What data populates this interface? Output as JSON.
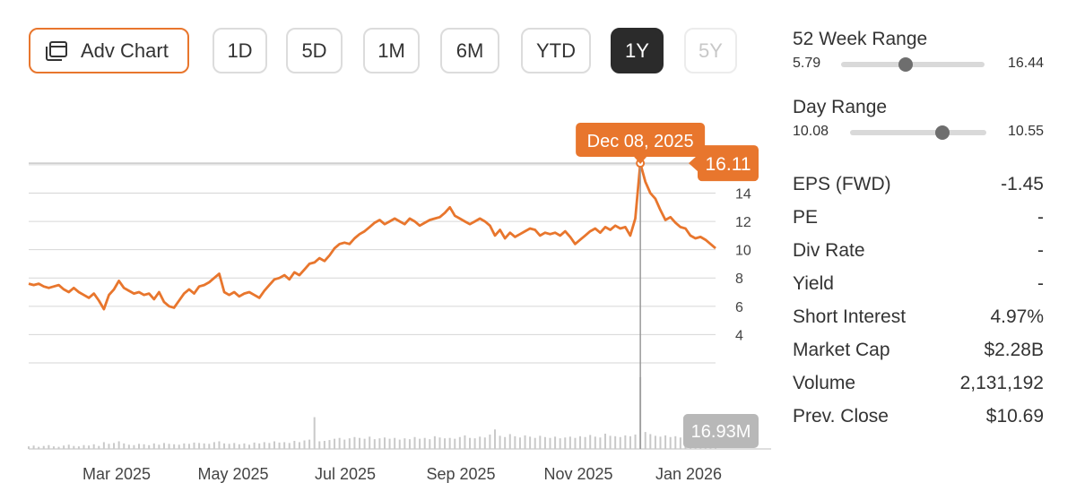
{
  "toolbar": {
    "adv_chart_label": "Adv Chart",
    "ranges": [
      {
        "label": "1D",
        "state": "normal"
      },
      {
        "label": "5D",
        "state": "normal"
      },
      {
        "label": "1M",
        "state": "normal"
      },
      {
        "label": "6M",
        "state": "normal"
      },
      {
        "label": "YTD",
        "state": "normal"
      },
      {
        "label": "1Y",
        "state": "active"
      },
      {
        "label": "5Y",
        "state": "disabled"
      }
    ]
  },
  "colors": {
    "accent": "#e8762d",
    "volume_bar": "#c9c9c9",
    "grid": "#d6d6d6",
    "active_button": "#2b2b2b"
  },
  "chart_data": {
    "type": "line",
    "y_ticks": [
      4,
      6,
      8,
      10,
      12,
      14
    ],
    "ylim": [
      2,
      16.5
    ],
    "x_ticks": [
      "Mar 2025",
      "May 2025",
      "Jul 2025",
      "Sep 2025",
      "Nov 2025",
      "Jan 2026"
    ],
    "series": [
      {
        "values": [
          7.6,
          7.5,
          7.6,
          7.4,
          7.3,
          7.4,
          7.5,
          7.2,
          7.0,
          7.3,
          7.0,
          6.8,
          6.6,
          6.9,
          6.4,
          5.8,
          6.8,
          7.2,
          7.8,
          7.3,
          7.1,
          6.9,
          7.0,
          6.8,
          6.9,
          6.5,
          7.0,
          6.3,
          6.0,
          5.9,
          6.4,
          6.9,
          7.2,
          6.9,
          7.4,
          7.5,
          7.7,
          8.0,
          8.3,
          7.0,
          6.8,
          7.0,
          6.7,
          6.9,
          7.0,
          6.8,
          6.6,
          7.1,
          7.5,
          7.9,
          8.0,
          8.2,
          7.9,
          8.4,
          8.2,
          8.6,
          9.0,
          9.1,
          9.4,
          9.2,
          9.6,
          10.1,
          10.4,
          10.5,
          10.4,
          10.8,
          11.1,
          11.3,
          11.6,
          11.9,
          12.1,
          11.8,
          12.0,
          12.2,
          12.0,
          11.8,
          12.2,
          12.0,
          11.7,
          11.9,
          12.1,
          12.2,
          12.3,
          12.6,
          13.0,
          12.4,
          12.2,
          12.0,
          11.8,
          12.0,
          12.2,
          12.0,
          11.7,
          11.0,
          11.4,
          10.8,
          11.2,
          10.9,
          11.1,
          11.3,
          11.5,
          11.4,
          11.0,
          11.2,
          11.1,
          11.2,
          11.0,
          11.3,
          10.9,
          10.4,
          10.7,
          11.0,
          11.3,
          11.5,
          11.2,
          11.6,
          11.4,
          11.7,
          11.5,
          11.6,
          11.0,
          12.2,
          16.11,
          14.8,
          14.0,
          13.6,
          12.8,
          12.1,
          12.3,
          11.9,
          11.6,
          11.5,
          11.0,
          10.8,
          10.9,
          10.7,
          10.4,
          10.1
        ]
      }
    ],
    "volume": {
      "values": [
        0.6,
        0.8,
        0.5,
        0.7,
        0.9,
        0.6,
        0.5,
        0.8,
        1.0,
        0.7,
        0.6,
        0.9,
        0.8,
        1.1,
        0.7,
        1.6,
        1.2,
        1.4,
        1.8,
        1.3,
        1.0,
        0.9,
        1.2,
        1.1,
        0.9,
        1.3,
        1.0,
        1.4,
        1.2,
        1.1,
        1.0,
        1.3,
        1.2,
        1.5,
        1.4,
        1.3,
        1.2,
        1.6,
        1.8,
        1.3,
        1.2,
        1.4,
        1.1,
        1.3,
        1.0,
        1.5,
        1.3,
        1.6,
        1.4,
        1.8,
        1.5,
        1.6,
        1.4,
        1.9,
        1.6,
        2.0,
        2.2,
        7.5,
        1.8,
        1.9,
        2.1,
        2.4,
        2.6,
        2.2,
        2.5,
        2.8,
        2.6,
        2.4,
        2.9,
        2.3,
        2.5,
        2.7,
        2.4,
        2.6,
        2.2,
        2.5,
        2.3,
        2.8,
        2.4,
        2.6,
        2.3,
        3.0,
        2.7,
        2.5,
        2.6,
        2.4,
        2.8,
        3.2,
        2.6,
        2.5,
        2.9,
        2.7,
        3.4,
        4.6,
        3.1,
        2.8,
        3.5,
        3.0,
        2.7,
        3.2,
        2.9,
        2.6,
        3.1,
        2.8,
        2.6,
        2.9,
        2.5,
        2.7,
        2.9,
        2.6,
        3.0,
        2.8,
        3.3,
        2.9,
        2.7,
        3.6,
        3.1,
        3.0,
        2.8,
        3.2,
        3.0,
        3.4,
        16.93,
        4.0,
        3.5,
        3.1,
        2.9,
        3.2,
        2.8,
        3.0,
        2.7,
        2.6,
        2.9,
        2.5,
        2.7,
        2.4,
        2.6,
        2.3
      ],
      "max_label": "16.93M"
    },
    "tooltip": {
      "date": "Dec 08, 2025",
      "price": "16.11",
      "index": 122
    }
  },
  "stats": {
    "week52": {
      "title": "52 Week Range",
      "low": "5.79",
      "high": "16.44",
      "low_val": 5.79,
      "high_val": 16.44,
      "current": 10.55
    },
    "day": {
      "title": "Day Range",
      "low": "10.08",
      "high": "10.55",
      "low_val": 10.08,
      "high_val": 10.55,
      "current": 10.4
    },
    "rows": [
      {
        "key": "EPS (FWD)",
        "value": "-1.45"
      },
      {
        "key": "PE",
        "value": "-"
      },
      {
        "key": "Div Rate",
        "value": "-"
      },
      {
        "key": "Yield",
        "value": "-"
      },
      {
        "key": "Short Interest",
        "value": "4.97%"
      },
      {
        "key": "Market Cap",
        "value": "$2.28B"
      },
      {
        "key": "Volume",
        "value": "2,131,192"
      },
      {
        "key": "Prev. Close",
        "value": "$10.69"
      }
    ]
  }
}
